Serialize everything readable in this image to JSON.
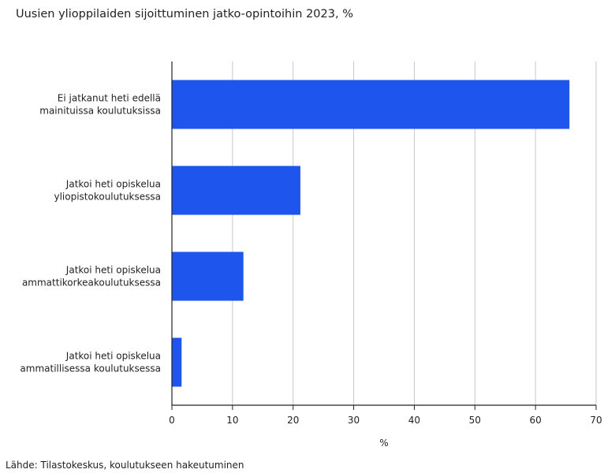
{
  "chart_data": {
    "type": "bar",
    "orientation": "horizontal",
    "title": "Uusien ylioppilaiden sijoittuminen jatko-opintoihin 2023, %",
    "categories": [
      [
        "Ei jatkanut heti edellä",
        "mainituissa koulutuksissa"
      ],
      [
        "Jatkoi heti opiskelua",
        "yliopistokoulutuksessa"
      ],
      [
        "Jatkoi heti opiskelua",
        "ammattikorkeakoulutuksessa"
      ],
      [
        "Jatkoi heti opiskelua",
        "ammatillisessa koulutuksessa"
      ]
    ],
    "values": [
      65.6,
      21.2,
      11.8,
      1.6
    ],
    "xlabel": "%",
    "xlim": [
      0,
      70
    ],
    "xticks": [
      0,
      10,
      20,
      30,
      40,
      50,
      60,
      70
    ],
    "grid": true,
    "bar_color": "#1e55ed"
  },
  "source": "Lähde: Tilastokeskus, koulutukseen hakeutuminen"
}
